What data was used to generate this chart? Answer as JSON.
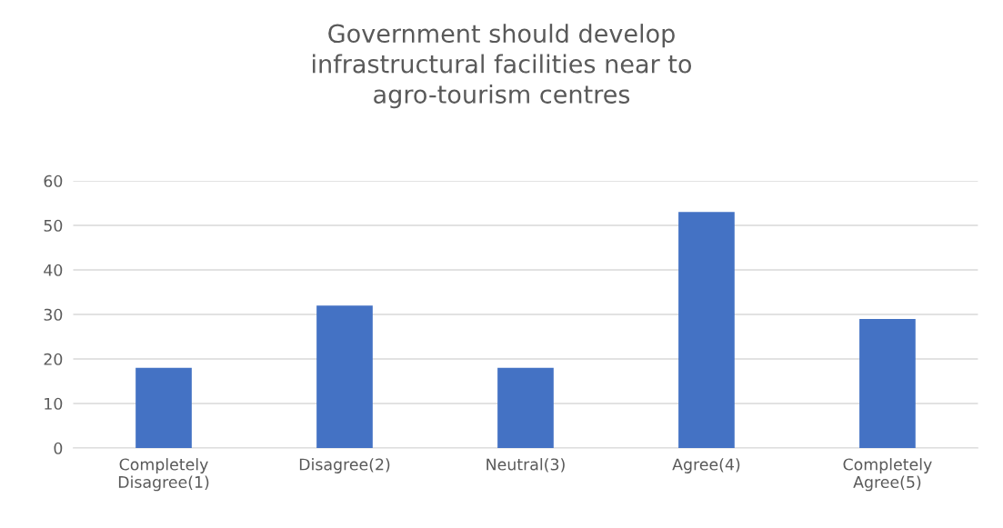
{
  "chart_data": {
    "type": "bar",
    "title": "Government should develop\ninfrastructural facilities near to\nagro-tourism centres",
    "categories": [
      "Completely\nDisagree(1)",
      "Disagree(2)",
      "Neutral(3)",
      "Agree(4)",
      "Completely\nAgree(5)"
    ],
    "values": [
      18,
      32,
      18,
      53,
      29
    ],
    "color": "#4472c4",
    "ylim": [
      0,
      60
    ],
    "yticks": [
      0,
      10,
      20,
      30,
      40,
      50,
      60
    ],
    "grid": "y"
  }
}
